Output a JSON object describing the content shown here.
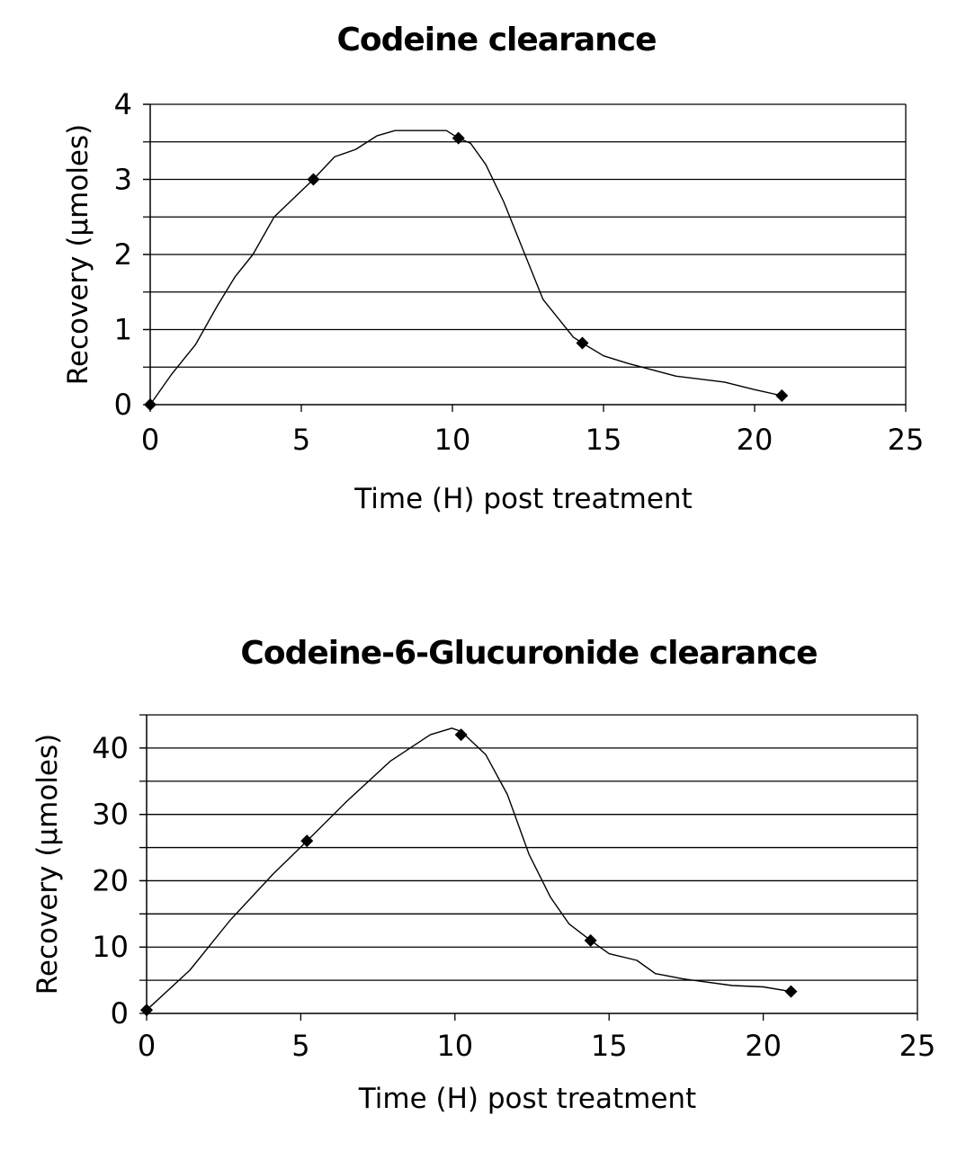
{
  "chart_data": [
    {
      "type": "line",
      "title": "Codeine clearance",
      "xlabel": "Time (H) post treatment",
      "ylabel": "Recovery (μmoles)",
      "xlim": [
        0,
        25
      ],
      "ylim": [
        0,
        4
      ],
      "xticks": [
        0,
        5,
        10,
        15,
        20,
        25
      ],
      "yticks": [
        0,
        1,
        2,
        3,
        4
      ],
      "grid": true,
      "series": [
        {
          "markers": {
            "x": [
              0,
              5.4,
              10.2,
              14.3,
              20.9
            ],
            "y": [
              0,
              3.0,
              3.55,
              0.82,
              0.12
            ]
          },
          "curve": {
            "x": [
              0,
              0.7,
              1.5,
              2.2,
              2.8,
              3.4,
              4.1,
              5.4,
              6.1,
              6.8,
              7.5,
              8.1,
              9.0,
              9.8,
              10.2,
              10.6,
              11.1,
              11.7,
              12.4,
              13.0,
              13.7,
              14.0,
              14.3,
              15.0,
              15.8,
              17.4,
              19.0,
              20.0,
              20.9
            ],
            "y": [
              0,
              0.4,
              0.8,
              1.3,
              1.7,
              2.0,
              2.5,
              3.0,
              3.3,
              3.4,
              3.58,
              3.65,
              3.65,
              3.65,
              3.55,
              3.48,
              3.2,
              2.7,
              2.0,
              1.4,
              1.05,
              0.9,
              0.82,
              0.65,
              0.55,
              0.38,
              0.3,
              0.2,
              0.12
            ]
          }
        }
      ]
    },
    {
      "type": "line",
      "title": "Codeine-6-Glucuronide clearance",
      "xlabel": "Time (H) post treatment",
      "ylabel": "Recovery (μmoles)",
      "xlim": [
        0,
        25
      ],
      "ylim": [
        0,
        45
      ],
      "xticks": [
        0,
        5,
        10,
        15,
        20,
        25
      ],
      "yticks": [
        0,
        10,
        20,
        30,
        40
      ],
      "grid": true,
      "series": [
        {
          "markers": {
            "x": [
              0,
              5.2,
              10.2,
              14.4,
              20.9
            ],
            "y": [
              0.5,
              26,
              42,
              11,
              3.3
            ]
          },
          "curve": {
            "x": [
              0,
              1.4,
              2.7,
              4.1,
              5.2,
              6.5,
              7.9,
              9.2,
              9.9,
              10.2,
              11.0,
              11.7,
              12.4,
              13.1,
              13.7,
              14.4,
              15.0,
              15.9,
              16.5,
              17.4,
              19.0,
              20.0,
              20.9
            ],
            "y": [
              0.5,
              6.5,
              14,
              21,
              26,
              32,
              38,
              42,
              43,
              42.5,
              39,
              33,
              24,
              17.5,
              13.5,
              11,
              9,
              8,
              6,
              5.2,
              4.2,
              4.0,
              3.3
            ]
          }
        }
      ]
    }
  ]
}
